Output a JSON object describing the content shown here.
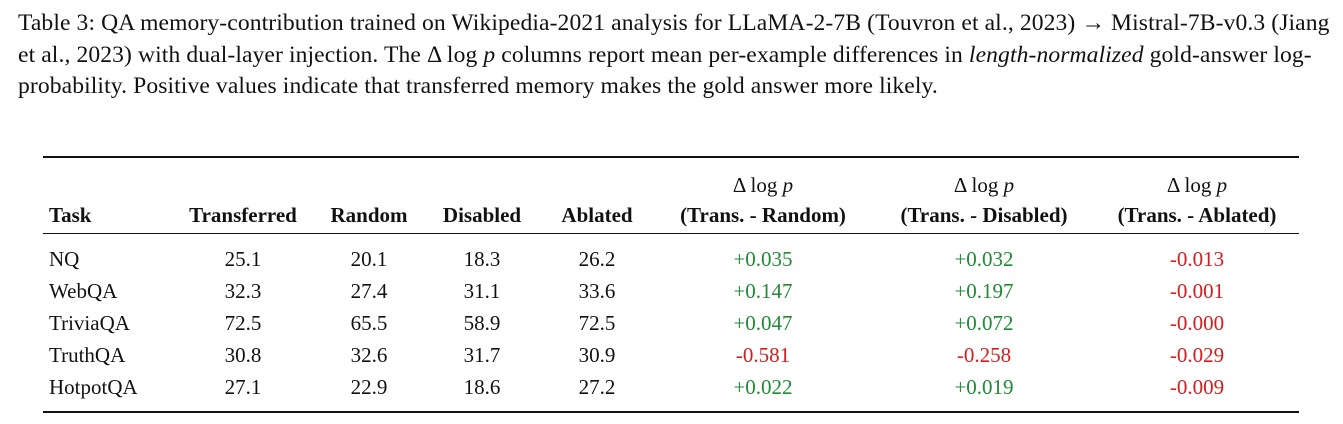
{
  "caption": {
    "part1": "Table 3: QA memory-contribution trained on Wikipedia-2021 analysis for LLaMA-2-7B (Touvron et al., 2023) → Mistral-7B-v0.3 (Jiang et al., 2023) with dual-layer injection. The Δ log ",
    "var_p": "p",
    "part2": " columns report mean per-example differences in ",
    "emph": "length-normalized",
    "part3": " gold-answer log-probability. Positive values indicate that transferred memory makes the gold answer more likely."
  },
  "table": {
    "headers": {
      "task": "Task",
      "transferred": "Transferred",
      "random": "Random",
      "disabled": "Disabled",
      "ablated": "Ablated",
      "delta_prefix": "Δ log ",
      "delta_var": "p",
      "delta_random": "(Trans. - Random)",
      "delta_disabled": "(Trans. - Disabled)",
      "delta_ablated": "(Trans. - Ablated)"
    },
    "rows": [
      {
        "task": "NQ",
        "transferred": "25.1",
        "random": "20.1",
        "disabled": "18.3",
        "ablated": "26.2",
        "d_random": "+0.035",
        "d_disabled": "+0.032",
        "d_ablated": "-0.013"
      },
      {
        "task": "WebQA",
        "transferred": "32.3",
        "random": "27.4",
        "disabled": "31.1",
        "ablated": "33.6",
        "d_random": "+0.147",
        "d_disabled": "+0.197",
        "d_ablated": "-0.001"
      },
      {
        "task": "TriviaQA",
        "transferred": "72.5",
        "random": "65.5",
        "disabled": "58.9",
        "ablated": "72.5",
        "d_random": "+0.047",
        "d_disabled": "+0.072",
        "d_ablated": "-0.000"
      },
      {
        "task": "TruthQA",
        "transferred": "30.8",
        "random": "32.6",
        "disabled": "31.7",
        "ablated": "30.9",
        "d_random": "-0.581",
        "d_disabled": "-0.258",
        "d_ablated": "-0.029"
      },
      {
        "task": "HotpotQA",
        "transferred": "27.1",
        "random": "22.9",
        "disabled": "18.6",
        "ablated": "27.2",
        "d_random": "+0.022",
        "d_disabled": "+0.019",
        "d_ablated": "-0.009"
      }
    ]
  },
  "colors": {
    "positive": "#1f8a34",
    "negative": "#d41c1c"
  }
}
